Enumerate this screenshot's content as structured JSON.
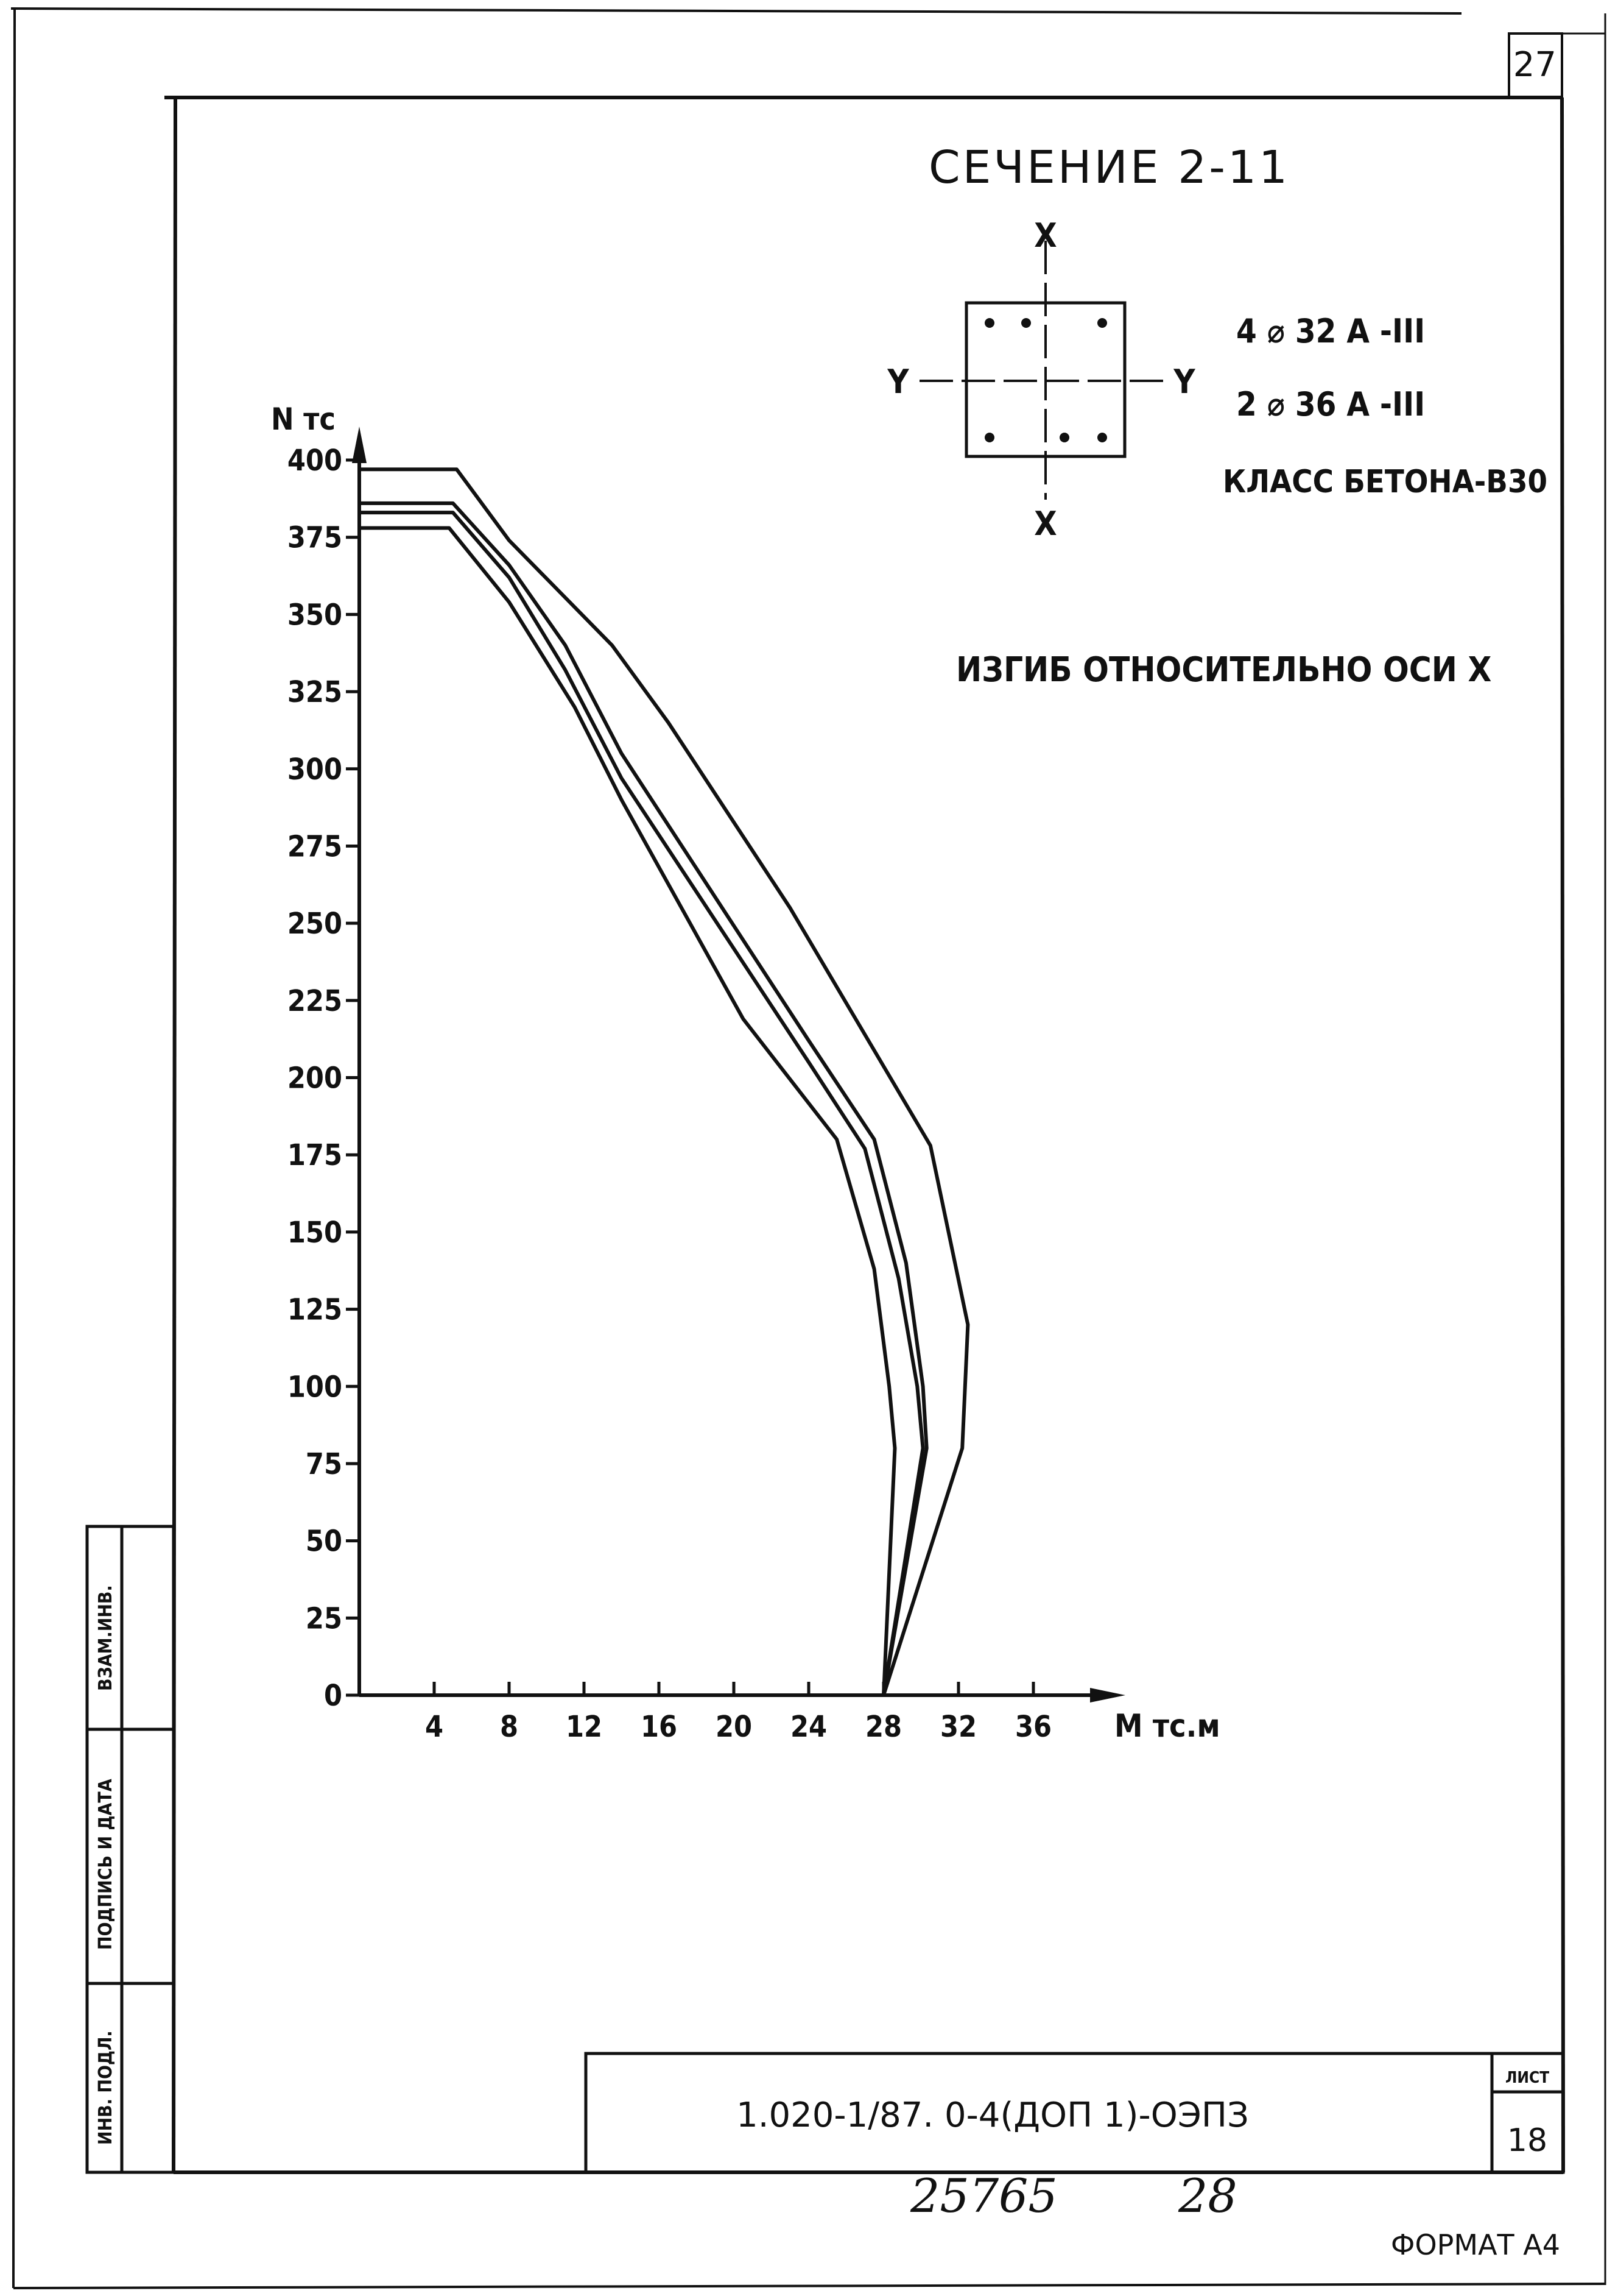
{
  "page_number": "27",
  "sheet_number": "18",
  "sheet_label": "ЛИСТ",
  "document_code": "1.020-1/87. 0-4(ДОП 1)-ОЭПЗ",
  "handwritten_number": "25765",
  "handwritten_page": "28",
  "format_label": "ФОРМАТ А4",
  "side_stamp": {
    "fields": [
      "ВЗАМ.ИНВ.",
      "ПОДПИСЬ И ДАТА",
      "ИНВ. ПОДЛ."
    ]
  },
  "section": {
    "title": "СЕЧЕНИЕ 2-11",
    "axis_x_top": "Х",
    "axis_x_bottom": "Х",
    "axis_y_left": "Y",
    "axis_y_right": "Y",
    "reinforcement_1": "4 ⌀ 32 А -III",
    "reinforcement_2": "2 ⌀ 36 А -III",
    "concrete_class": "КЛАСС БЕТОНА-В30",
    "bending_note": "ИЗГИБ ОТНОСИТЕЛЬНО ОСИ Х"
  },
  "chart_data": {
    "type": "line",
    "title": "",
    "xlabel": "М тс.м",
    "ylabel": "N тс",
    "xlim": [
      0,
      40
    ],
    "ylim": [
      0,
      400
    ],
    "x_ticks": [
      "4",
      "8",
      "12",
      "16",
      "20",
      "24",
      "28",
      "32",
      "36"
    ],
    "x_tick_values": [
      4,
      8,
      12,
      16,
      20,
      24,
      28,
      32,
      36
    ],
    "y_ticks": [
      "0",
      "25",
      "50",
      "75",
      "100",
      "125",
      "150",
      "175",
      "200",
      "225",
      "250",
      "275",
      "300",
      "325",
      "350",
      "375",
      "400"
    ],
    "y_tick_values": [
      0,
      25,
      50,
      75,
      100,
      125,
      150,
      175,
      200,
      225,
      250,
      275,
      300,
      325,
      350,
      375,
      400
    ],
    "grid": false,
    "legend": "none",
    "series": [
      {
        "points": [
          [
            0,
            397
          ],
          [
            5.2,
            397
          ],
          [
            8,
            374
          ],
          [
            13.5,
            340
          ],
          [
            16.5,
            315
          ],
          [
            23,
            255
          ],
          [
            30.5,
            178
          ],
          [
            32.5,
            120
          ],
          [
            32.2,
            80
          ],
          [
            28,
            0
          ]
        ]
      },
      {
        "points": [
          [
            0,
            386
          ],
          [
            5,
            386
          ],
          [
            8,
            366
          ],
          [
            11,
            340
          ],
          [
            14,
            305
          ],
          [
            24,
            212
          ],
          [
            27.5,
            180
          ],
          [
            29.2,
            140
          ],
          [
            30.1,
            100
          ],
          [
            30.3,
            80
          ],
          [
            28,
            0
          ]
        ]
      },
      {
        "points": [
          [
            0,
            383
          ],
          [
            5,
            383
          ],
          [
            8,
            362
          ],
          [
            11,
            332
          ],
          [
            14,
            297
          ],
          [
            24,
            205
          ],
          [
            27,
            177
          ],
          [
            28.8,
            135
          ],
          [
            29.8,
            100
          ],
          [
            30.1,
            80
          ],
          [
            28,
            0
          ]
        ]
      },
      {
        "points": [
          [
            0,
            378
          ],
          [
            4.8,
            378
          ],
          [
            8,
            354
          ],
          [
            11.5,
            320
          ],
          [
            14,
            290
          ],
          [
            20.5,
            219
          ],
          [
            25.5,
            180
          ],
          [
            27.5,
            138
          ],
          [
            28.3,
            100
          ],
          [
            28.6,
            80
          ],
          [
            28,
            0
          ]
        ]
      }
    ]
  }
}
